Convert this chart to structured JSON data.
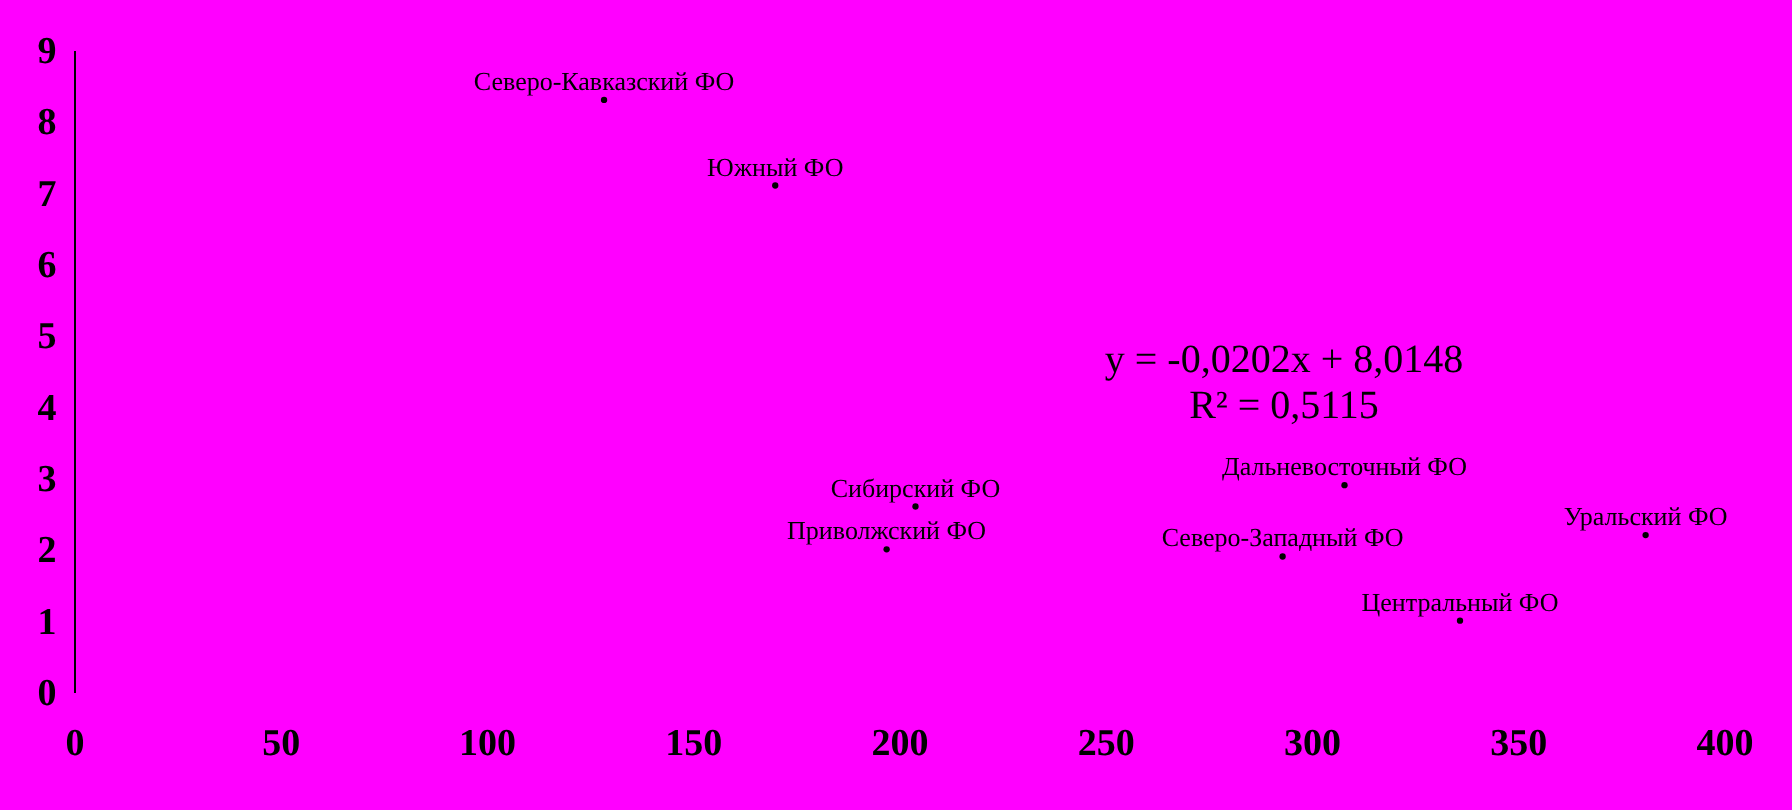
{
  "chart_data": {
    "type": "scatter",
    "x": [
      128.5,
      170,
      204,
      197,
      308,
      293,
      381,
      336
    ],
    "series": [
      {
        "color": "#000000",
        "values": [
          8.3,
          7.1,
          2.6,
          2.0,
          2.9,
          1.9,
          2.2,
          1.0
        ]
      }
    ],
    "xlim": [
      0,
      400
    ],
    "xticks": [
      0,
      50,
      100,
      150,
      200,
      250,
      300,
      350,
      400
    ],
    "ylim": [
      0,
      9
    ],
    "yticks": [
      0,
      1,
      2,
      3,
      4,
      5,
      6,
      7,
      8,
      9
    ],
    "grid": false,
    "marker": "circle",
    "annotations": [
      {
        "text": "Северо-Кавказский ФО",
        "x": 128.5,
        "y": 8.3
      },
      {
        "text": "Южный ФО",
        "x": 170,
        "y": 7.1
      },
      {
        "text": "Сибирский ФО",
        "x": 204,
        "y": 2.6
      },
      {
        "text": "Приволжский ФО",
        "x": 197,
        "y": 2.0
      },
      {
        "text": "Дальневосточный ФО",
        "x": 308,
        "y": 2.9
      },
      {
        "text": "Северо-Западный ФО",
        "x": 293,
        "y": 1.9
      },
      {
        "text": "Уральский ФО",
        "x": 381,
        "y": 2.2
      },
      {
        "text": "Центральный ФО",
        "x": 336,
        "y": 1.0
      },
      "y = -0,0202x + 8,0148",
      "R² = 0,5115"
    ]
  }
}
